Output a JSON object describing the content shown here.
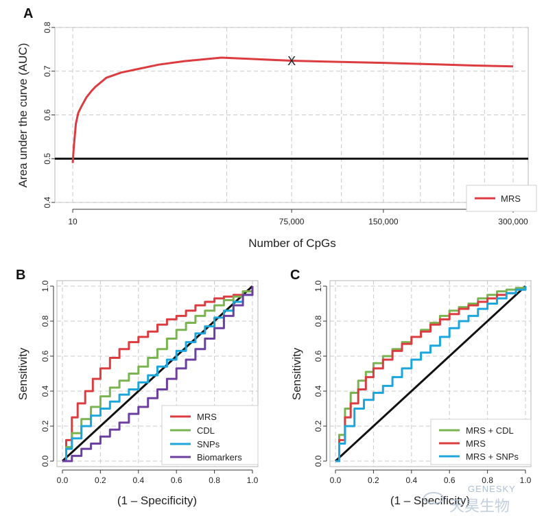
{
  "colors": {
    "mrs": "#dc3b3f",
    "cdl": "#7ab450",
    "snps": "#1ba6dc",
    "biomarkers": "#6c3fa0",
    "reference": "#111111",
    "grid": "#c8c8c8"
  },
  "watermark": {
    "brand": "GENESKY",
    "brand_cn": "天昊生物"
  },
  "chart_data": [
    {
      "panel": "A",
      "type": "line",
      "xlabel": "Number of CpGs",
      "ylabel": "Area under the curve (AUC)",
      "xscale": "sqrt",
      "xlim": [
        10,
        300000
      ],
      "ylim": [
        0.4,
        0.8
      ],
      "xticks": [
        10,
        75000,
        150000,
        300000
      ],
      "xtick_labels": [
        "10",
        "75,000",
        "150,000",
        "300,000"
      ],
      "yticks": [
        0.4,
        0.5,
        0.6,
        0.7,
        0.8
      ],
      "ytick_labels": [
        "0.4",
        "0.5",
        "0.6",
        "0.7",
        "0.8"
      ],
      "grid": true,
      "legend_position": "bottom-right",
      "reference_line": 0.5,
      "series": [
        {
          "name": "MRS",
          "color_key": "mrs",
          "x": [
            10,
            20,
            50,
            100,
            200,
            400,
            700,
            1000,
            2000,
            4000,
            7000,
            12000,
            20000,
            35000,
            50000,
            75000,
            100000,
            150000,
            200000,
            250000,
            300000
          ],
          "y": [
            0.49,
            0.525,
            0.58,
            0.605,
            0.62,
            0.64,
            0.655,
            0.665,
            0.685,
            0.697,
            0.705,
            0.715,
            0.723,
            0.731,
            0.728,
            0.724,
            0.722,
            0.719,
            0.716,
            0.713,
            0.711
          ]
        }
      ],
      "annotations": [
        {
          "label": "X",
          "x": 75000,
          "y": 0.723
        }
      ]
    },
    {
      "panel": "B",
      "type": "line",
      "xlabel": "(1 – Specificity)",
      "ylabel": "Sensitivity",
      "xlim": [
        0,
        1
      ],
      "ylim": [
        0,
        1
      ],
      "ticks": [
        0,
        0.2,
        0.4,
        0.6,
        0.8,
        1
      ],
      "tick_labels": [
        "0.0",
        "0.2",
        "0.4",
        "0.6",
        "0.8",
        "1.0"
      ],
      "grid": true,
      "legend_position": "bottom-right",
      "series": [
        {
          "name": "MRS",
          "color_key": "mrs",
          "x": [
            0,
            0.02,
            0.05,
            0.08,
            0.12,
            0.16,
            0.2,
            0.25,
            0.3,
            0.35,
            0.4,
            0.45,
            0.5,
            0.55,
            0.6,
            0.65,
            0.7,
            0.75,
            0.8,
            0.85,
            0.9,
            0.95,
            1
          ],
          "y": [
            0,
            0.12,
            0.25,
            0.33,
            0.4,
            0.47,
            0.53,
            0.59,
            0.64,
            0.68,
            0.71,
            0.74,
            0.78,
            0.81,
            0.83,
            0.86,
            0.89,
            0.91,
            0.93,
            0.94,
            0.95,
            0.97,
            1
          ]
        },
        {
          "name": "CDL",
          "color_key": "cdl",
          "x": [
            0,
            0.02,
            0.05,
            0.1,
            0.15,
            0.2,
            0.25,
            0.3,
            0.35,
            0.4,
            0.45,
            0.5,
            0.55,
            0.6,
            0.65,
            0.7,
            0.75,
            0.8,
            0.85,
            0.9,
            0.95,
            1
          ],
          "y": [
            0,
            0.08,
            0.16,
            0.24,
            0.31,
            0.37,
            0.42,
            0.46,
            0.5,
            0.54,
            0.59,
            0.64,
            0.7,
            0.75,
            0.79,
            0.83,
            0.86,
            0.89,
            0.92,
            0.94,
            0.97,
            1
          ]
        },
        {
          "name": "SNPs",
          "color_key": "snps",
          "x": [
            0,
            0.02,
            0.05,
            0.1,
            0.15,
            0.2,
            0.25,
            0.3,
            0.35,
            0.4,
            0.45,
            0.5,
            0.55,
            0.6,
            0.65,
            0.7,
            0.75,
            0.8,
            0.85,
            0.9,
            0.95,
            1
          ],
          "y": [
            0,
            0.07,
            0.13,
            0.2,
            0.26,
            0.3,
            0.34,
            0.38,
            0.41,
            0.45,
            0.49,
            0.54,
            0.58,
            0.63,
            0.68,
            0.73,
            0.77,
            0.82,
            0.86,
            0.91,
            0.95,
            1
          ]
        },
        {
          "name": "Biomarkers",
          "color_key": "biomarkers",
          "x": [
            0,
            0.05,
            0.1,
            0.15,
            0.2,
            0.25,
            0.3,
            0.35,
            0.4,
            0.45,
            0.5,
            0.55,
            0.6,
            0.65,
            0.7,
            0.75,
            0.8,
            0.85,
            0.9,
            0.95,
            1
          ],
          "y": [
            0,
            0.03,
            0.07,
            0.1,
            0.14,
            0.18,
            0.22,
            0.27,
            0.31,
            0.36,
            0.41,
            0.47,
            0.53,
            0.58,
            0.64,
            0.7,
            0.76,
            0.83,
            0.89,
            0.95,
            1
          ]
        }
      ]
    },
    {
      "panel": "C",
      "type": "line",
      "xlabel": "(1 – Specificity)",
      "ylabel": "Sensitivity",
      "xlim": [
        0,
        1
      ],
      "ylim": [
        0,
        1
      ],
      "ticks": [
        0,
        0.2,
        0.4,
        0.6,
        0.8,
        1
      ],
      "tick_labels": [
        "0.0",
        "0.2",
        "0.4",
        "0.6",
        "0.8",
        "1.0"
      ],
      "grid": true,
      "legend_position": "bottom-right",
      "series": [
        {
          "name": "MRS + CDL",
          "color_key": "cdl",
          "x": [
            0,
            0.02,
            0.05,
            0.08,
            0.12,
            0.16,
            0.2,
            0.25,
            0.3,
            0.35,
            0.4,
            0.45,
            0.5,
            0.55,
            0.6,
            0.65,
            0.7,
            0.75,
            0.8,
            0.85,
            0.9,
            0.95,
            1
          ],
          "y": [
            0,
            0.15,
            0.3,
            0.39,
            0.46,
            0.51,
            0.56,
            0.6,
            0.64,
            0.68,
            0.71,
            0.75,
            0.79,
            0.83,
            0.86,
            0.88,
            0.9,
            0.93,
            0.95,
            0.97,
            0.98,
            0.99,
            1
          ]
        },
        {
          "name": "MRS",
          "color_key": "mrs",
          "x": [
            0,
            0.02,
            0.05,
            0.08,
            0.12,
            0.16,
            0.2,
            0.25,
            0.3,
            0.35,
            0.4,
            0.45,
            0.5,
            0.55,
            0.6,
            0.65,
            0.7,
            0.75,
            0.8,
            0.85,
            0.9,
            0.95,
            1
          ],
          "y": [
            0,
            0.12,
            0.25,
            0.33,
            0.41,
            0.48,
            0.53,
            0.58,
            0.63,
            0.67,
            0.71,
            0.74,
            0.78,
            0.81,
            0.84,
            0.87,
            0.89,
            0.91,
            0.93,
            0.95,
            0.96,
            0.98,
            1
          ]
        },
        {
          "name": "MRS + SNPs",
          "color_key": "snps",
          "x": [
            0,
            0.02,
            0.05,
            0.1,
            0.15,
            0.2,
            0.25,
            0.3,
            0.35,
            0.4,
            0.45,
            0.5,
            0.55,
            0.6,
            0.65,
            0.7,
            0.75,
            0.8,
            0.85,
            0.9,
            0.95,
            1
          ],
          "y": [
            0,
            0.1,
            0.2,
            0.3,
            0.35,
            0.39,
            0.43,
            0.48,
            0.53,
            0.58,
            0.62,
            0.66,
            0.71,
            0.76,
            0.8,
            0.83,
            0.87,
            0.9,
            0.93,
            0.96,
            0.98,
            1
          ]
        }
      ]
    }
  ]
}
